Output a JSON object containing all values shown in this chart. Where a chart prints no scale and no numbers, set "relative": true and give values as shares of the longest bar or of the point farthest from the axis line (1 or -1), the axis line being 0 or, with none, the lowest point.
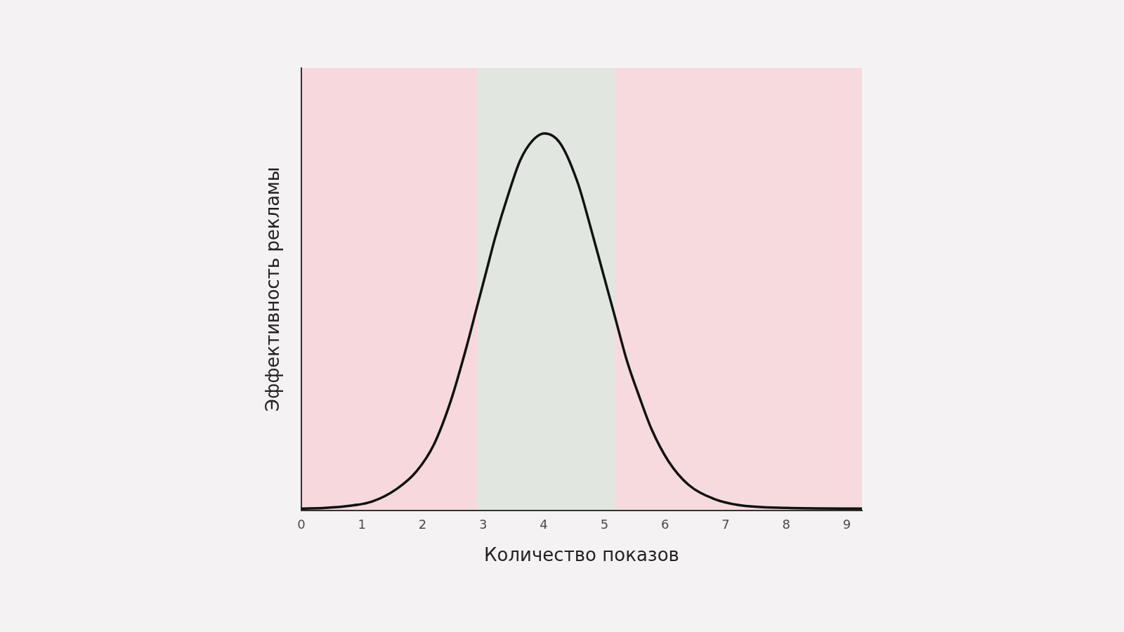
{
  "chart_data": {
    "type": "line",
    "xlabel": "Количество показов",
    "ylabel": "Эффективность рекламы",
    "relative": true,
    "xlim": [
      0,
      9.25
    ],
    "xticks": [
      0,
      1,
      2,
      3,
      4,
      5,
      6,
      7,
      8,
      9
    ],
    "color": "#111111",
    "x": [
      0,
      0.4,
      0.77,
      1.17,
      1.58,
      1.9,
      2.19,
      2.47,
      2.72,
      2.88,
      3.04,
      3.2,
      3.41,
      3.61,
      3.81,
      4.01,
      4.27,
      4.56,
      4.76,
      4.96,
      5.17,
      5.37,
      5.58,
      5.78,
      6.06,
      6.39,
      6.79,
      7.2,
      8.01,
      9.25
    ],
    "values": [
      0.005,
      0.007,
      0.012,
      0.024,
      0.058,
      0.104,
      0.176,
      0.293,
      0.431,
      0.529,
      0.627,
      0.725,
      0.836,
      0.928,
      0.98,
      1,
      0.974,
      0.869,
      0.758,
      0.64,
      0.516,
      0.398,
      0.3,
      0.215,
      0.13,
      0.068,
      0.032,
      0.015,
      0.007,
      0.005
    ],
    "bands": [
      {
        "axis": "x",
        "from": 0,
        "to": 2.9,
        "color": "#f6d8dd"
      },
      {
        "axis": "x",
        "from": 2.9,
        "to": 5.17,
        "color": "#e1e6e0"
      },
      {
        "axis": "x",
        "from": 5.17,
        "to": 9.25,
        "color": "#f6dade"
      }
    ]
  }
}
